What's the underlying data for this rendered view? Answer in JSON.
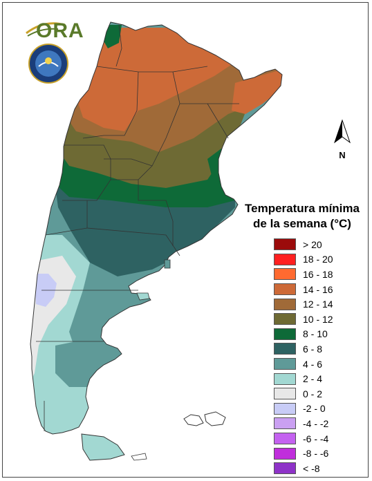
{
  "logo": {
    "text_main": "ORA",
    "accent_color": "#c9a22a",
    "main_color": "#5a7a2a",
    "icon": "ora-logo"
  },
  "emblem": {
    "icon": "servicio-meteorologico-nacional-seal"
  },
  "north_arrow": {
    "label": "N"
  },
  "legend": {
    "title_line1": "Temperatura mínima",
    "title_line2": "de la semana (°C)",
    "items": [
      {
        "label": "> 20",
        "color": "#9b0b0b"
      },
      {
        "label": "18 - 20",
        "color": "#ff2020"
      },
      {
        "label": "16 - 18",
        "color": "#ff6a30"
      },
      {
        "label": "14 - 16",
        "color": "#cd6a38"
      },
      {
        "label": "12 - 14",
        "color": "#a06a38"
      },
      {
        "label": "10 - 12",
        "color": "#6e6a34"
      },
      {
        "label": "8 - 10",
        "color": "#0e6a38"
      },
      {
        "label": "6 - 8",
        "color": "#2e6262"
      },
      {
        "label": "4 - 6",
        "color": "#5f9a98"
      },
      {
        "label": "2 - 4",
        "color": "#a2d8d2"
      },
      {
        "label": "0 - 2",
        "color": "#e8e8e8"
      },
      {
        "label": "-2 - 0",
        "color": "#c8ccf6"
      },
      {
        "label": "-4 - -2",
        "color": "#caa0f2"
      },
      {
        "label": "-6 - -4",
        "color": "#c462f0"
      },
      {
        "label": "-8 - -6",
        "color": "#c02edc"
      },
      {
        "label": "< -8",
        "color": "#8e32c8"
      }
    ]
  }
}
